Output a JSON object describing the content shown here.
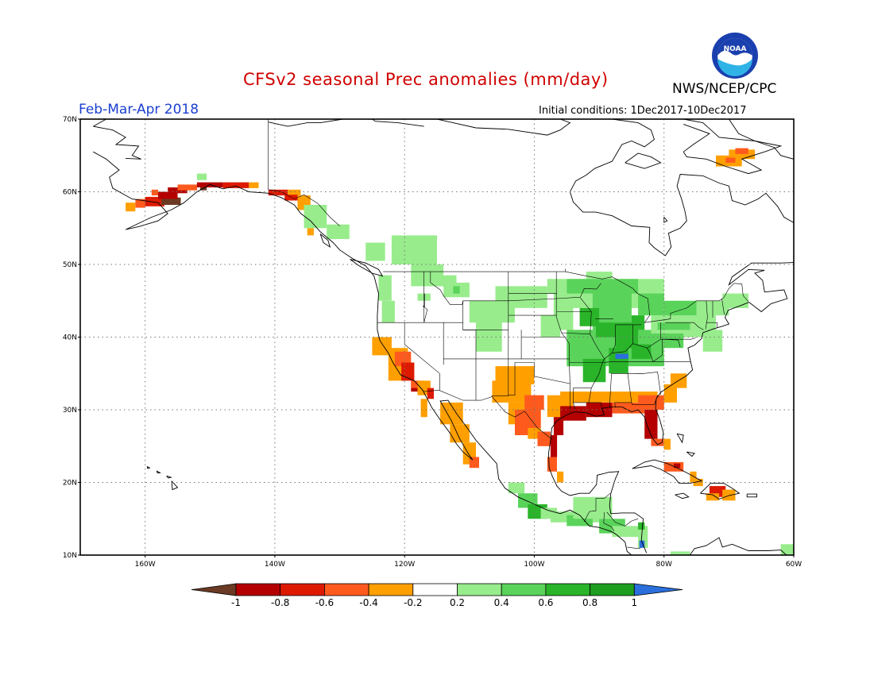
{
  "title": "CFSv2 seasonal Prec anomalies (mm/day)",
  "agency": "NWS/NCEP/CPC",
  "logo_text": "NOAA",
  "season": "Feb-Mar-Apr 2018",
  "initial_conditions": "Initial conditions: 1Dec2017-10Dec2017",
  "lat_labels": [
    "70N",
    "60N",
    "50N",
    "40N",
    "30N",
    "20N",
    "10N"
  ],
  "lon_labels": [
    "160W",
    "140W",
    "120W",
    "100W",
    "80W",
    "60W"
  ],
  "colorbar": {
    "ticks": [
      "-1",
      "-0.8",
      "-0.6",
      "-0.4",
      "-0.2",
      "0.2",
      "0.4",
      "0.6",
      "0.8",
      "1"
    ],
    "colors": {
      "lt_m1": "#6b3a24",
      "m1_m08": "#b40000",
      "m08_m06": "#dd1a00",
      "m06_m04": "#ff5a1e",
      "m04_m02": "#ff9f00",
      "m02_02": "#ffffff",
      "p02_04": "#98ec8c",
      "p04_06": "#5ad35a",
      "p06_08": "#2ab42a",
      "p08_1": "#1e9e1e",
      "gt_1": "#2a6fdc"
    }
  }
}
